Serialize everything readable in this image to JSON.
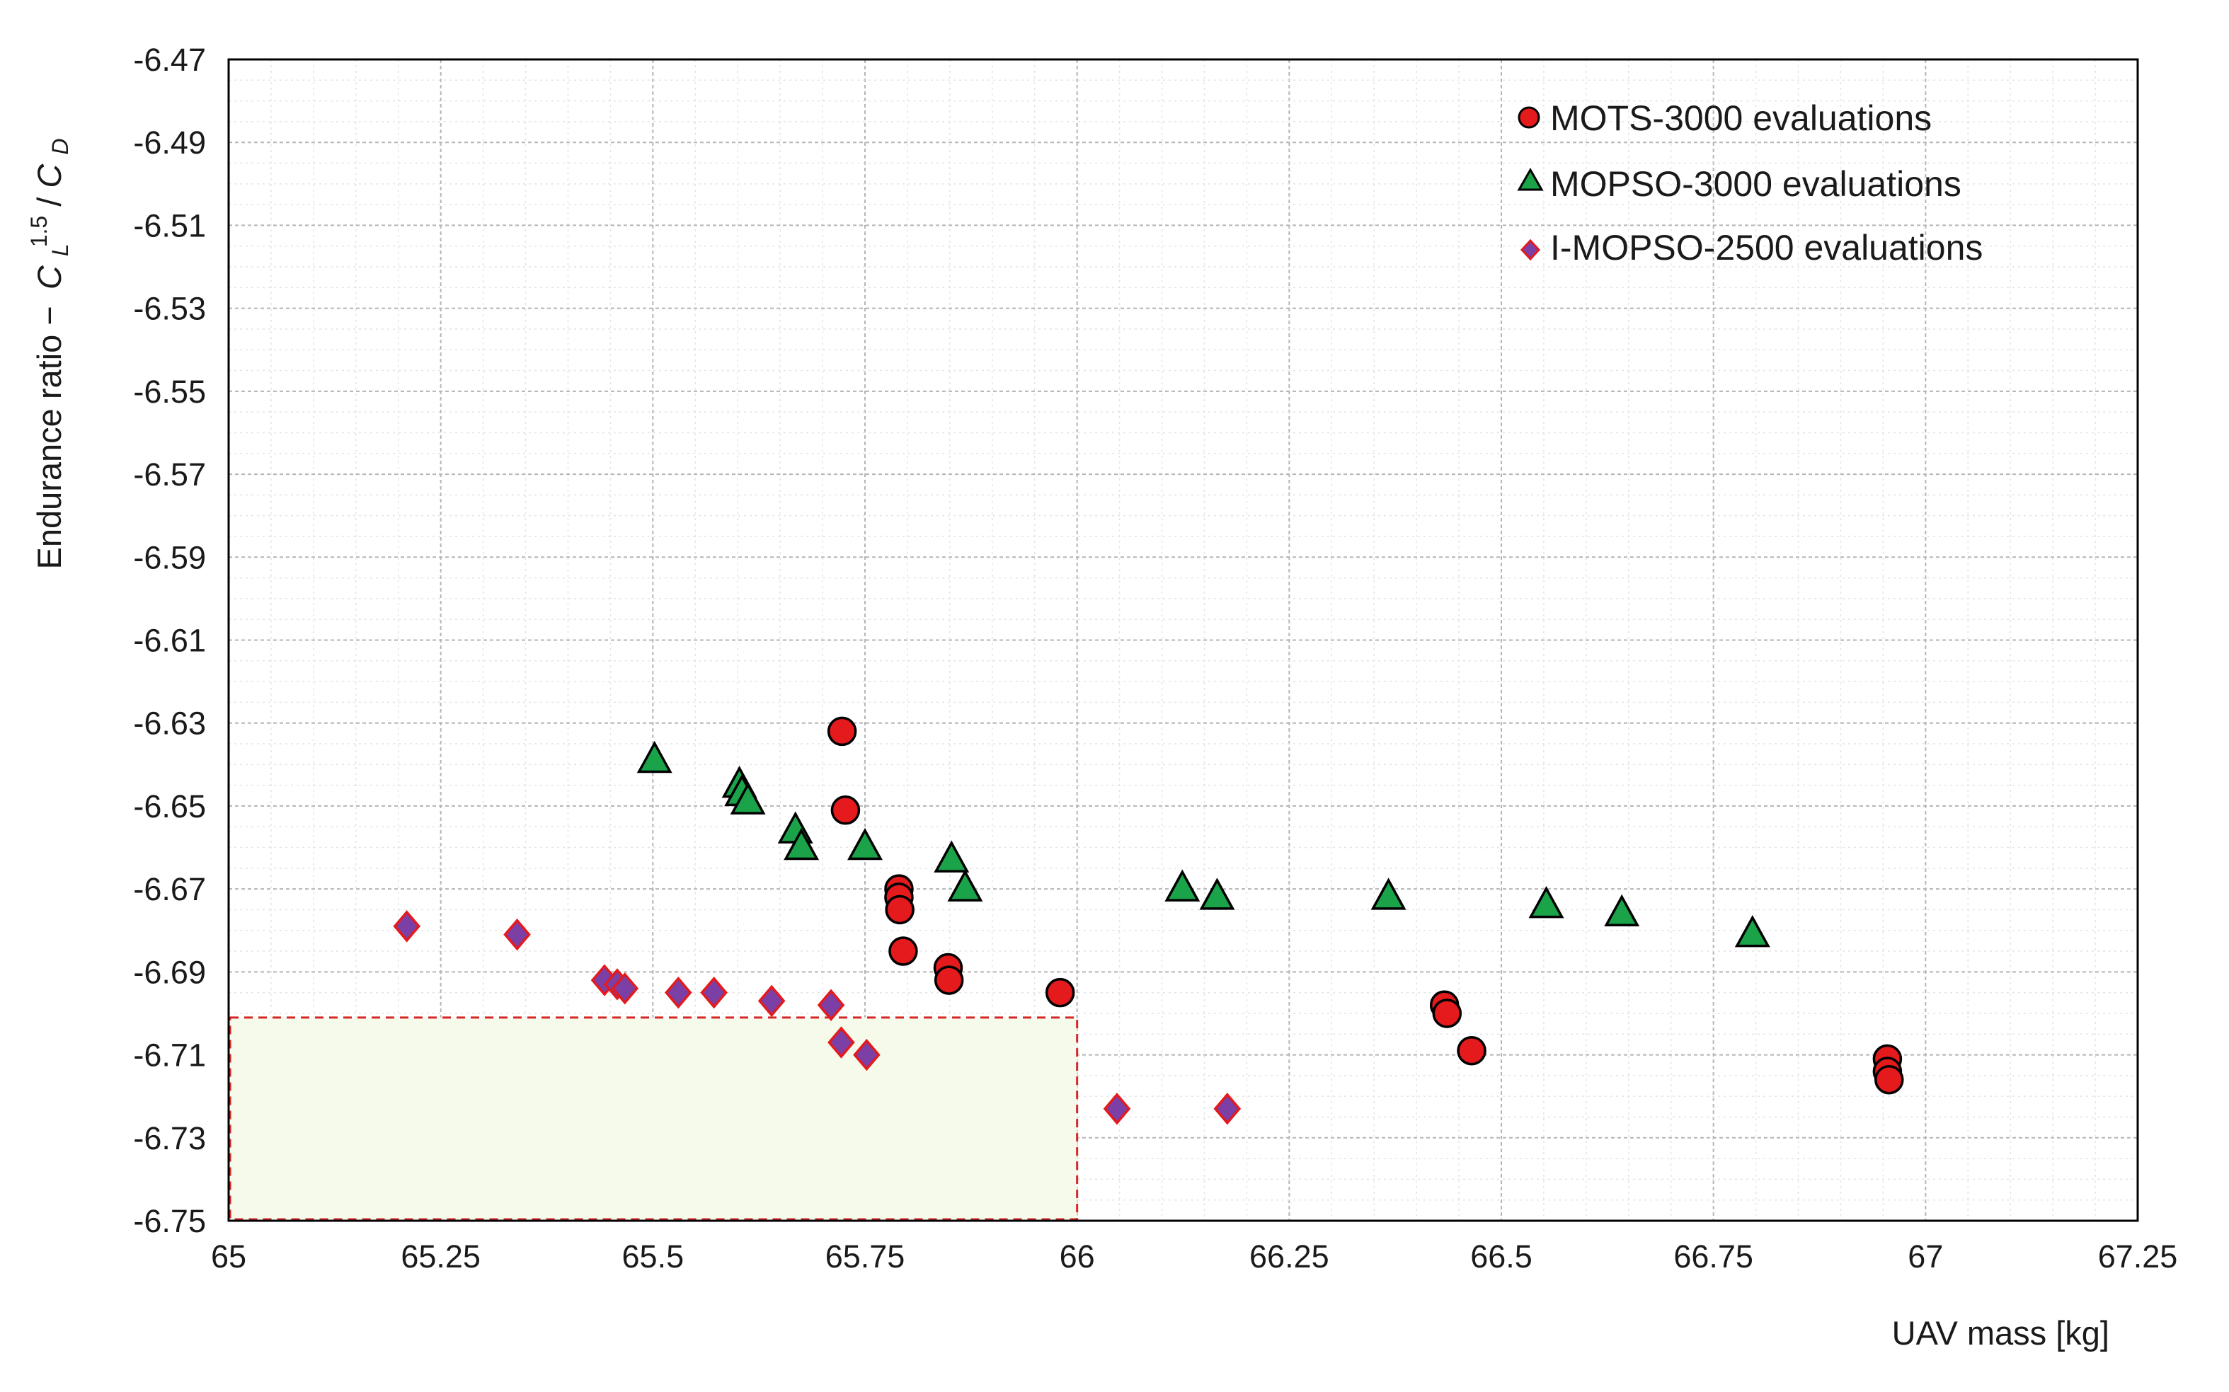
{
  "chart_data": {
    "type": "scatter",
    "xlabel": "UAV mass [kg]",
    "ylabel": {
      "prefix": "Endurance ratio  −",
      "base_top": "C",
      "sub_top": "L",
      "sup_top": "1.5",
      "slash": " / ",
      "base_bottom": "C",
      "sub_bottom": "D"
    },
    "xlim": [
      65,
      67.25
    ],
    "ylim": [
      -6.75,
      -6.47
    ],
    "x_ticks": [
      "65",
      "65.25",
      "65.5",
      "65.75",
      "66",
      "66.25",
      "66.5",
      "66.75",
      "67",
      "67.25"
    ],
    "y_ticks": [
      "-6.47",
      "-6.49",
      "-6.51",
      "-6.53",
      "-6.55",
      "-6.57",
      "-6.59",
      "-6.61",
      "-6.63",
      "-6.65",
      "-6.67",
      "-6.69",
      "-6.71",
      "-6.73",
      "-6.75"
    ],
    "grid": true,
    "legend_position": "top-right",
    "series": [
      {
        "name": "MOTS-3000 evaluations",
        "marker": "circle",
        "color": "#e41a1c",
        "points": [
          [
            65.723,
            -6.632
          ],
          [
            65.727,
            -6.651
          ],
          [
            65.79,
            -6.67
          ],
          [
            65.79,
            -6.672
          ],
          [
            65.791,
            -6.675
          ],
          [
            65.795,
            -6.685
          ],
          [
            65.848,
            -6.689
          ],
          [
            65.849,
            -6.692
          ],
          [
            65.98,
            -6.695
          ],
          [
            66.433,
            -6.698
          ],
          [
            66.436,
            -6.7
          ],
          [
            66.465,
            -6.709
          ],
          [
            66.955,
            -6.711
          ],
          [
            66.955,
            -6.714
          ],
          [
            66.957,
            -6.716
          ]
        ]
      },
      {
        "name": "MOPSO-3000 evaluations",
        "marker": "triangle",
        "color": "#1ba34a",
        "points": [
          [
            65.502,
            -6.639
          ],
          [
            65.602,
            -6.645
          ],
          [
            65.605,
            -6.647
          ],
          [
            65.612,
            -6.649
          ],
          [
            65.668,
            -6.656
          ],
          [
            65.675,
            -6.66
          ],
          [
            65.75,
            -6.66
          ],
          [
            65.852,
            -6.663
          ],
          [
            65.868,
            -6.67
          ],
          [
            66.124,
            -6.67
          ],
          [
            66.165,
            -6.672
          ],
          [
            66.367,
            -6.672
          ],
          [
            66.553,
            -6.674
          ],
          [
            66.642,
            -6.676
          ],
          [
            66.796,
            -6.681
          ]
        ]
      },
      {
        "name": "I-MOPSO-2500 evaluations",
        "marker": "diamond",
        "color": "#7b3fa6",
        "points": [
          [
            65.21,
            -6.679
          ],
          [
            65.34,
            -6.681
          ],
          [
            65.443,
            -6.692
          ],
          [
            65.458,
            -6.693
          ],
          [
            65.467,
            -6.694
          ],
          [
            65.53,
            -6.695
          ],
          [
            65.572,
            -6.695
          ],
          [
            65.64,
            -6.697
          ],
          [
            65.71,
            -6.698
          ],
          [
            65.722,
            -6.707
          ],
          [
            65.752,
            -6.71
          ],
          [
            66.047,
            -6.723
          ],
          [
            66.177,
            -6.723
          ]
        ]
      }
    ],
    "highlight_region": {
      "x": [
        65,
        66
      ],
      "y": [
        -6.75,
        -6.701
      ],
      "fill": "#f6faea",
      "border": "#d62728",
      "style": "dashed"
    }
  }
}
